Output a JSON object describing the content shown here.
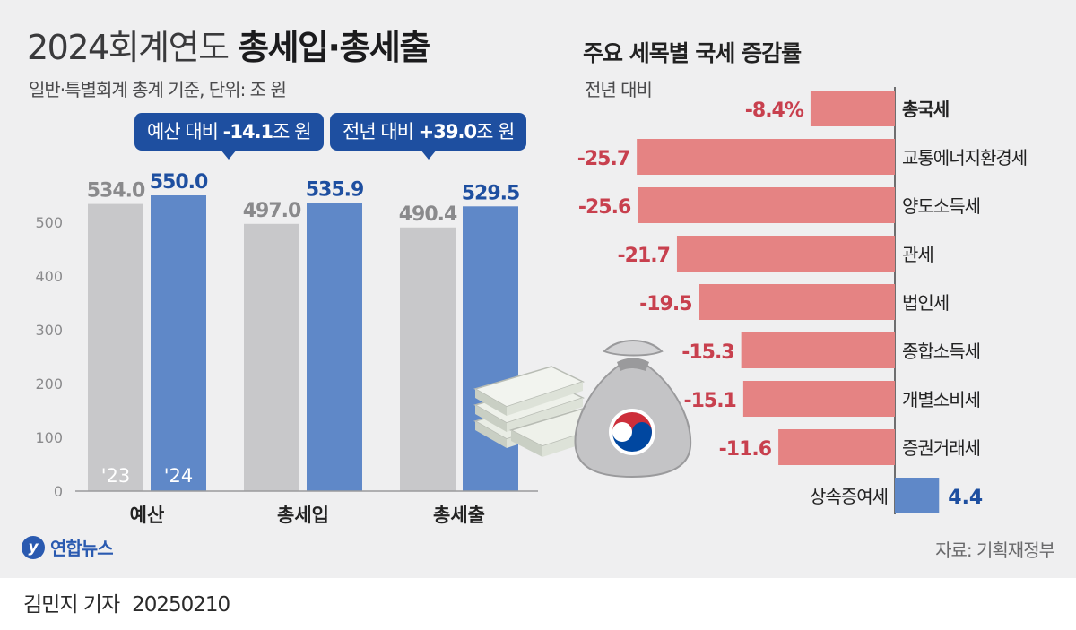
{
  "header": {
    "title_light": "2024회계연도 ",
    "title_bold": "총세입·총세출",
    "subtitle": "일반·특별회계 총계 기준, 단위: 조 원"
  },
  "callouts": {
    "budget_prefix": "예산 대비 ",
    "budget_value": "-14.1",
    "budget_suffix": "조 원",
    "prev_prefix": "전년 대비 ",
    "prev_value": "+39.0",
    "prev_suffix": "조 원"
  },
  "right_header": {
    "title": "주요 세목별 국세 증감률",
    "subtitle": "전년 대비"
  },
  "chart_data": [
    {
      "type": "bar",
      "categories": [
        "예산",
        "총세입",
        "총세출"
      ],
      "series": [
        {
          "name": "'23",
          "values": [
            534.0,
            497.0,
            490.4
          ],
          "labels": [
            "534.0",
            "497.0",
            "490.4"
          ]
        },
        {
          "name": "'24",
          "values": [
            550.0,
            535.9,
            529.5
          ],
          "labels": [
            "550.0",
            "535.9",
            "529.5"
          ]
        }
      ],
      "ylim": [
        0,
        550
      ],
      "yticks": [
        0,
        100,
        200,
        300,
        400,
        500
      ],
      "colors": {
        "2023": "#c8c8ca",
        "2024": "#5f88c8"
      }
    },
    {
      "type": "bar",
      "orientation": "horizontal",
      "categories": [
        "총국세",
        "교통에너지환경세",
        "양도소득세",
        "관세",
        "법인세",
        "종합소득세",
        "개별소비세",
        "증권거래세",
        "상속증여세"
      ],
      "values": [
        -8.4,
        -25.7,
        -25.6,
        -21.7,
        -19.5,
        -15.3,
        -15.1,
        -11.6,
        4.4
      ],
      "value_labels": [
        "-8.4%",
        "-25.7",
        "-25.6",
        "-21.7",
        "-19.5",
        "-15.3",
        "-15.1",
        "-11.6",
        "4.4"
      ],
      "highlight_category": "총국세",
      "colors": {
        "negative": "#e58383",
        "positive": "#5f88c8",
        "negative_text": "#c8404e",
        "positive_text": "#1e4fa0"
      }
    }
  ],
  "footer": {
    "logo_mark": "y",
    "logo_text": "연합뉴스",
    "source": "자료: 기획재정부",
    "reporter": "김민지 기자",
    "date": "20250210"
  },
  "illustration": {
    "name": "money-bag-and-cash-stacks-icon"
  }
}
